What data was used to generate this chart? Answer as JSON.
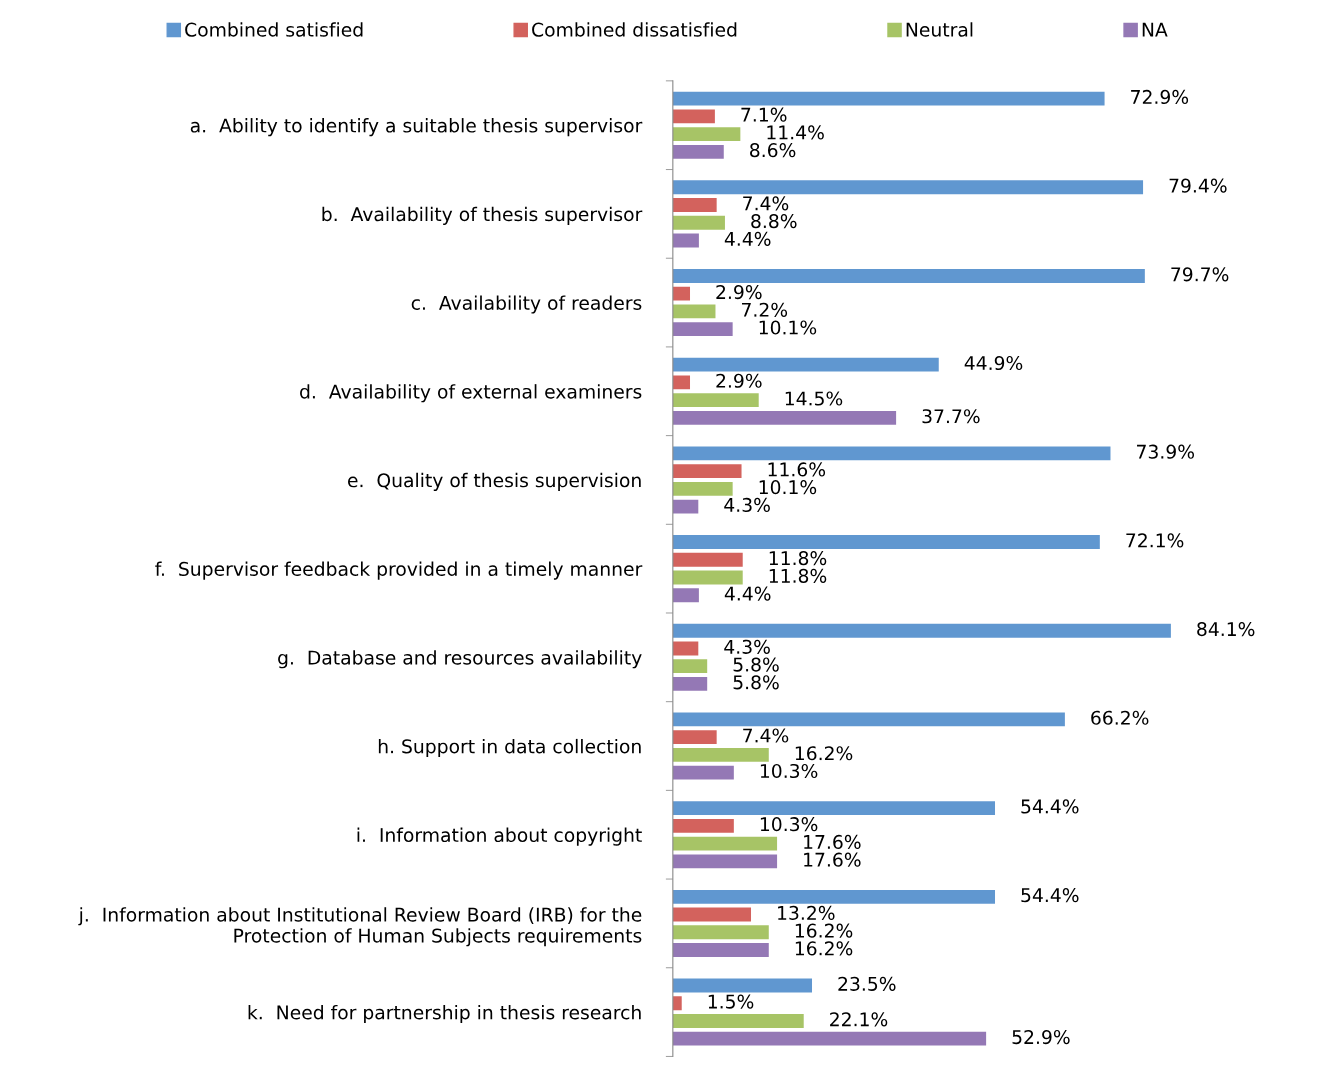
{
  "chart_data": {
    "type": "bar",
    "orientation": "horizontal",
    "legend": "top",
    "grid": false,
    "categories": [
      "a.  Ability to identify a suitable thesis supervisor",
      "b.  Availability of thesis supervisor",
      "c.  Availability of readers",
      "d.  Availability of external examiners",
      "e.  Quality of thesis supervision",
      "f.  Supervisor feedback provided in a timely manner",
      "g.  Database and resources availability",
      "h. Support in data collection",
      "i.  Information about copyright",
      "j.  Information about Institutional Review Board (IRB) for the\nProtection of Human Subjects requirements",
      "k.  Need for partnership in thesis research"
    ],
    "series": [
      {
        "name": "Combined satisfied",
        "color": "#6097d0",
        "values": [
          72.9,
          79.4,
          79.7,
          44.9,
          73.9,
          72.1,
          84.1,
          66.2,
          54.4,
          54.4,
          23.5
        ],
        "value_labels": [
          "72.9%",
          "79.4%",
          "79.7%",
          "44.9%",
          "73.9%",
          "72.1%",
          "84.1%",
          "66.2%",
          "54.4%",
          "54.4%",
          "23.5%"
        ]
      },
      {
        "name": "Combined dissatisfied",
        "color": "#d3625d",
        "values": [
          7.1,
          7.4,
          2.9,
          2.9,
          11.6,
          11.8,
          4.3,
          7.4,
          10.3,
          13.2,
          1.5
        ],
        "value_labels": [
          "7.1%",
          "7.4%",
          "2.9%",
          "2.9%",
          "11.6%",
          "11.8%",
          "4.3%",
          "7.4%",
          "10.3%",
          "13.2%",
          "1.5%"
        ]
      },
      {
        "name": "Neutral",
        "color": "#a7c466",
        "values": [
          11.4,
          8.8,
          7.2,
          14.5,
          10.1,
          11.8,
          5.8,
          16.2,
          17.6,
          16.2,
          22.1
        ],
        "value_labels": [
          "11.4%",
          "8.8%",
          "7.2%",
          "14.5%",
          "10.1%",
          "11.8%",
          "5.8%",
          "16.2%",
          "17.6%",
          "16.2%",
          "22.1%"
        ]
      },
      {
        "name": "NA",
        "color": "#9478b5",
        "values": [
          8.6,
          4.4,
          10.1,
          37.7,
          4.3,
          4.4,
          5.8,
          10.3,
          17.6,
          16.2,
          52.9
        ],
        "value_labels": [
          "8.6%",
          "4.4%",
          "10.1%",
          "37.7%",
          "4.3%",
          "4.4%",
          "5.8%",
          "10.3%",
          "17.6%",
          "16.2%",
          "52.9%"
        ]
      }
    ]
  }
}
